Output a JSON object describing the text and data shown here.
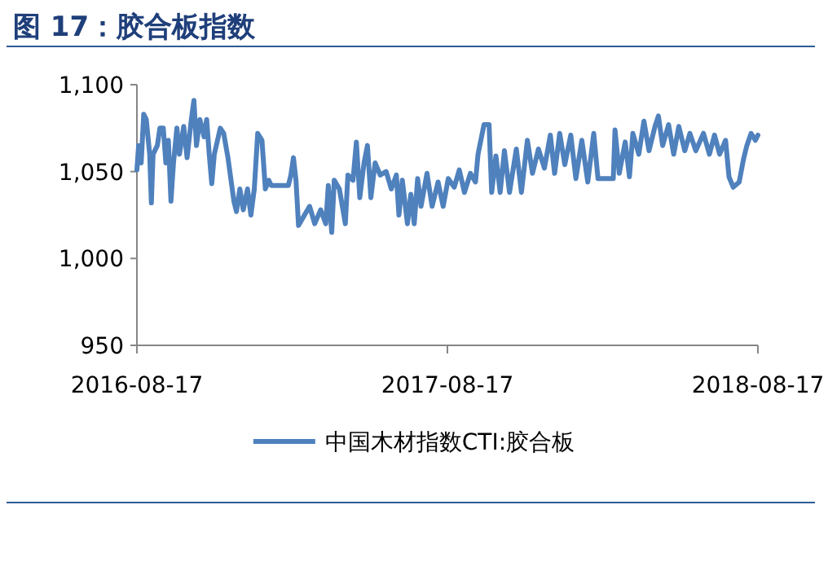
{
  "chart_data": {
    "type": "line",
    "title": "图 17：胶合板指数",
    "x": [
      "2016-08-17",
      "2016-08-19",
      "2016-08-22",
      "2016-08-25",
      "2016-08-28",
      "2016-09-01",
      "2016-09-03",
      "2016-09-05",
      "2016-09-10",
      "2016-09-13",
      "2016-09-17",
      "2016-09-20",
      "2016-09-23",
      "2016-09-26",
      "2016-09-29",
      "2016-10-03",
      "2016-10-06",
      "2016-10-11",
      "2016-10-15",
      "2016-10-20",
      "2016-10-23",
      "2016-10-26",
      "2016-10-30",
      "2016-11-04",
      "2016-11-07",
      "2016-11-10",
      "2016-11-13",
      "2016-11-16",
      "2016-11-23",
      "2016-11-27",
      "2016-12-02",
      "2016-12-09",
      "2016-12-12",
      "2016-12-16",
      "2016-12-20",
      "2016-12-25",
      "2016-12-29",
      "2017-01-02",
      "2017-01-06",
      "2017-01-11",
      "2017-01-15",
      "2017-01-19",
      "2017-01-22",
      "2017-02-11",
      "2017-02-14",
      "2017-02-17",
      "2017-02-20",
      "2017-02-23",
      "2017-03-02",
      "2017-03-08",
      "2017-03-14",
      "2017-03-21",
      "2017-03-27",
      "2017-03-30",
      "2017-04-03",
      "2017-04-06",
      "2017-04-12",
      "2017-04-19",
      "2017-04-22",
      "2017-04-28",
      "2017-05-02",
      "2017-05-06",
      "2017-05-11",
      "2017-05-15",
      "2017-05-19",
      "2017-05-24",
      "2017-05-30",
      "2017-06-06",
      "2017-06-12",
      "2017-06-18",
      "2017-06-21",
      "2017-06-25",
      "2017-07-01",
      "2017-07-05",
      "2017-07-09",
      "2017-07-13",
      "2017-07-17",
      "2017-07-24",
      "2017-07-30",
      "2017-08-06",
      "2017-08-12",
      "2017-08-18",
      "2017-08-25",
      "2017-08-31",
      "2017-09-06",
      "2017-09-13",
      "2017-09-19",
      "2017-09-22",
      "2017-09-29",
      "2017-10-05",
      "2017-10-08",
      "2017-10-13",
      "2017-10-18",
      "2017-10-23",
      "2017-10-29",
      "2017-11-06",
      "2017-11-12",
      "2017-11-19",
      "2017-11-25",
      "2017-12-02",
      "2017-12-09",
      "2017-12-16",
      "2017-12-21",
      "2017-12-27",
      "2018-01-02",
      "2018-01-09",
      "2018-01-15",
      "2018-01-22",
      "2018-01-29",
      "2018-02-05",
      "2018-02-10",
      "2018-02-28",
      "2018-03-02",
      "2018-03-07",
      "2018-03-14",
      "2018-03-19",
      "2018-03-23",
      "2018-03-30",
      "2018-04-05",
      "2018-04-11",
      "2018-04-18",
      "2018-04-22",
      "2018-04-27",
      "2018-05-04",
      "2018-05-10",
      "2018-05-16",
      "2018-05-23",
      "2018-05-29",
      "2018-06-05",
      "2018-06-14",
      "2018-06-21",
      "2018-06-27",
      "2018-07-03",
      "2018-07-10",
      "2018-07-14",
      "2018-07-19",
      "2018-07-26",
      "2018-07-31",
      "2018-08-04",
      "2018-08-09",
      "2018-08-14",
      "2018-08-17"
    ],
    "series": [
      {
        "name": "中国木材指数CTI:胶合板",
        "color": "#4f81bd",
        "values": [
          1051,
          1065,
          1055,
          1083,
          1080,
          1060,
          1032,
          1060,
          1065,
          1075,
          1075,
          1055,
          1068,
          1033,
          1055,
          1075,
          1060,
          1076,
          1058,
          1080,
          1091,
          1065,
          1080,
          1070,
          1080,
          1060,
          1043,
          1060,
          1075,
          1072,
          1058,
          1033,
          1027,
          1040,
          1028,
          1040,
          1025,
          1040,
          1072,
          1068,
          1040,
          1045,
          1042,
          1042,
          1048,
          1058,
          1045,
          1019,
          1025,
          1030,
          1020,
          1028,
          1020,
          1042,
          1015,
          1045,
          1040,
          1020,
          1048,
          1045,
          1067,
          1035,
          1055,
          1065,
          1035,
          1055,
          1048,
          1050,
          1040,
          1048,
          1025,
          1045,
          1020,
          1037,
          1020,
          1046,
          1030,
          1049,
          1030,
          1044,
          1030,
          1046,
          1041,
          1051,
          1038,
          1049,
          1044,
          1060,
          1077,
          1077,
          1038,
          1059,
          1038,
          1062,
          1038,
          1063,
          1038,
          1068,
          1049,
          1063,
          1052,
          1071,
          1049,
          1072,
          1054,
          1071,
          1046,
          1068,
          1044,
          1072,
          1046,
          1046,
          1074,
          1049,
          1067,
          1047,
          1072,
          1060,
          1079,
          1062,
          1076,
          1082,
          1065,
          1077,
          1060,
          1076,
          1062,
          1072,
          1062,
          1072,
          1060,
          1071,
          1060,
          1068,
          1047,
          1041,
          1044,
          1057,
          1065,
          1072,
          1068,
          1071
        ]
      }
    ],
    "xlim": [
      "2016-08-17",
      "2018-08-17"
    ],
    "xticks": [
      "2016-08-17",
      "2017-08-17",
      "2018-08-17"
    ],
    "ylim": [
      950,
      1100
    ],
    "yticks": [
      {
        "value": 950,
        "label": "950"
      },
      {
        "value": 1000,
        "label": "1,000"
      },
      {
        "value": 1050,
        "label": "1,050"
      },
      {
        "value": 1100,
        "label": "1,100"
      }
    ],
    "grid": false,
    "legend": "bottom",
    "marker": "none",
    "line_style": "solid"
  }
}
